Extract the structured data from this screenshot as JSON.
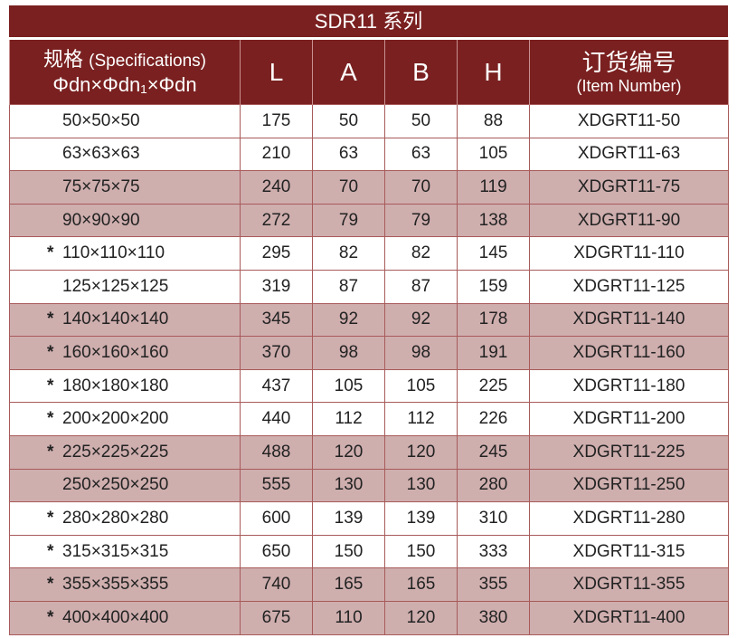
{
  "title": "SDR11 系列",
  "headers": {
    "spec_cn": "规格",
    "spec_en": "(Specifications)",
    "spec_formula": "Φdn×Φdn₁×Φdn",
    "L": "L",
    "A": "A",
    "B": "B",
    "H": "H",
    "item_cn": "订货编号",
    "item_en": "(Item Number)"
  },
  "colors": {
    "header": "#7a2020",
    "highlight_row": "#cfaeae",
    "border": "#a85a5a"
  },
  "rows": [
    {
      "star": "",
      "spec": "50×50×50",
      "L": "175",
      "A": "50",
      "B": "50",
      "H": "88",
      "item": "XDGRT11-50",
      "pink": false
    },
    {
      "star": "",
      "spec": "63×63×63",
      "L": "210",
      "A": "63",
      "B": "63",
      "H": "105",
      "item": "XDGRT11-63",
      "pink": false
    },
    {
      "star": "",
      "spec": "75×75×75",
      "L": "240",
      "A": "70",
      "B": "70",
      "H": "119",
      "item": "XDGRT11-75",
      "pink": true
    },
    {
      "star": "",
      "spec": "90×90×90",
      "L": "272",
      "A": "79",
      "B": "79",
      "H": "138",
      "item": "XDGRT11-90",
      "pink": true
    },
    {
      "star": "*",
      "spec": "110×110×110",
      "L": "295",
      "A": "82",
      "B": "82",
      "H": "145",
      "item": "XDGRT11-110",
      "pink": false
    },
    {
      "star": "",
      "spec": "125×125×125",
      "L": "319",
      "A": "87",
      "B": "87",
      "H": "159",
      "item": "XDGRT11-125",
      "pink": false
    },
    {
      "star": "*",
      "spec": "140×140×140",
      "L": "345",
      "A": "92",
      "B": "92",
      "H": "178",
      "item": "XDGRT11-140",
      "pink": true
    },
    {
      "star": "*",
      "spec": "160×160×160",
      "L": "370",
      "A": "98",
      "B": "98",
      "H": "191",
      "item": "XDGRT11-160",
      "pink": true
    },
    {
      "star": "*",
      "spec": "180×180×180",
      "L": "437",
      "A": "105",
      "B": "105",
      "H": "225",
      "item": "XDGRT11-180",
      "pink": false
    },
    {
      "star": "*",
      "spec": "200×200×200",
      "L": "440",
      "A": "112",
      "B": "112",
      "H": "226",
      "item": "XDGRT11-200",
      "pink": false
    },
    {
      "star": "*",
      "spec": "225×225×225",
      "L": "488",
      "A": "120",
      "B": "120",
      "H": "245",
      "item": "XDGRT11-225",
      "pink": true
    },
    {
      "star": "",
      "spec": "250×250×250",
      "L": "555",
      "A": "130",
      "B": "130",
      "H": "280",
      "item": "XDGRT11-250",
      "pink": true
    },
    {
      "star": "*",
      "spec": "280×280×280",
      "L": "600",
      "A": "139",
      "B": "139",
      "H": "310",
      "item": "XDGRT11-280",
      "pink": false
    },
    {
      "star": "*",
      "spec": "315×315×315",
      "L": "650",
      "A": "150",
      "B": "150",
      "H": "333",
      "item": "XDGRT11-315",
      "pink": false
    },
    {
      "star": "*",
      "spec": "355×355×355",
      "L": "740",
      "A": "165",
      "B": "165",
      "H": "355",
      "item": "XDGRT11-355",
      "pink": true
    },
    {
      "star": "*",
      "spec": "400×400×400",
      "L": "675",
      "A": "110",
      "B": "120",
      "H": "380",
      "item": "XDGRT11-400",
      "pink": true
    }
  ]
}
